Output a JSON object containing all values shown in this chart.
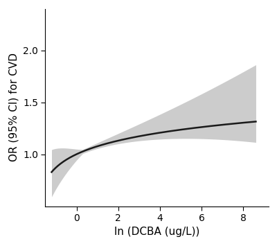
{
  "x_start": -1.2,
  "x_end": 8.6,
  "xlim": [
    -1.5,
    9.2
  ],
  "ylim": [
    0.5,
    2.4
  ],
  "xticks": [
    0,
    2,
    4,
    6,
    8
  ],
  "yticks": [
    1.0,
    1.5,
    2.0
  ],
  "xlabel": "ln (DCBA (ug/L))",
  "ylabel": "OR (95% CI) for CVD",
  "line_color": "#1a1a1a",
  "ci_color": "#cccccc",
  "background_color": "#ffffff",
  "line_width": 1.8,
  "xlabel_fontsize": 11,
  "ylabel_fontsize": 11,
  "tick_fontsize": 10,
  "a_val": 0.87,
  "b_val": 0.188,
  "c_val": 2.0,
  "pivot_x": 0.3
}
